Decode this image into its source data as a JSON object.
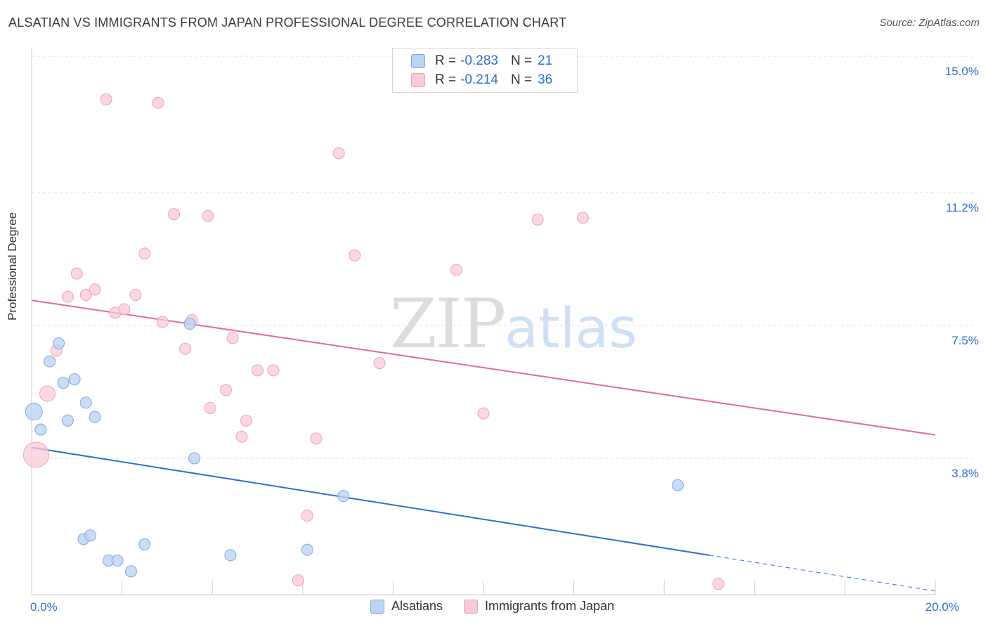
{
  "title": "ALSATIAN VS IMMIGRANTS FROM JAPAN PROFESSIONAL DEGREE CORRELATION CHART",
  "source": "Source: ZipAtlas.com",
  "watermark": {
    "zip": "ZIP",
    "atlas": "atlas"
  },
  "legend_top": [
    {
      "r_label": "R =",
      "r_value": "-0.283",
      "n_label": "N =",
      "n_value": "21"
    },
    {
      "r_label": "R =",
      "r_value": "-0.214",
      "n_label": "N =",
      "n_value": "36"
    }
  ],
  "colors": {
    "alsatian_fill": "#bcd4f3",
    "alsatian_stroke": "#7fa8de",
    "alsatian_line": "#2f6fd0",
    "japan_fill": "#f9cad8",
    "japan_stroke": "#eea1b9",
    "japan_line": "#e06b93",
    "grid": "#e2e2e2",
    "tick_label": "#2f6fd0"
  },
  "chart_data": {
    "type": "scatter",
    "xlabel": "",
    "ylabel": "Professional Degree",
    "xlim": [
      0,
      20
    ],
    "ylim": [
      0,
      15
    ],
    "x_tick_labels": [
      {
        "value": 0,
        "label": "0.0%"
      },
      {
        "value": 20,
        "label": "20.0%"
      }
    ],
    "y_tick_labels": [
      {
        "value": 3.8,
        "label": "3.8%"
      },
      {
        "value": 7.5,
        "label": "7.5%"
      },
      {
        "value": 11.2,
        "label": "11.2%"
      },
      {
        "value": 15.0,
        "label": "15.0%"
      }
    ],
    "grid": true,
    "legend": "bottom",
    "series": [
      {
        "name": "Alsatians",
        "points": [
          {
            "x": 0.05,
            "y": 5.1,
            "size": "large"
          },
          {
            "x": 0.2,
            "y": 4.6
          },
          {
            "x": 0.4,
            "y": 6.5
          },
          {
            "x": 0.6,
            "y": 7.0
          },
          {
            "x": 0.7,
            "y": 5.9
          },
          {
            "x": 0.8,
            "y": 4.85
          },
          {
            "x": 0.95,
            "y": 6.0
          },
          {
            "x": 1.2,
            "y": 5.35
          },
          {
            "x": 1.4,
            "y": 4.95
          },
          {
            "x": 1.15,
            "y": 1.55
          },
          {
            "x": 1.3,
            "y": 1.65
          },
          {
            "x": 1.7,
            "y": 0.95
          },
          {
            "x": 1.9,
            "y": 0.95
          },
          {
            "x": 2.2,
            "y": 0.65
          },
          {
            "x": 2.5,
            "y": 1.4
          },
          {
            "x": 3.5,
            "y": 7.55
          },
          {
            "x": 3.6,
            "y": 3.8
          },
          {
            "x": 4.4,
            "y": 1.1
          },
          {
            "x": 6.1,
            "y": 1.25
          },
          {
            "x": 6.9,
            "y": 2.75
          },
          {
            "x": 14.3,
            "y": 3.05
          }
        ],
        "trend": {
          "x0": 0,
          "y0": 4.1,
          "x1": 15.0,
          "y1": 1.1,
          "dashed_to": {
            "x": 20.0,
            "y": 0.1
          }
        }
      },
      {
        "name": "Immigrants from Japan",
        "points": [
          {
            "x": 0.1,
            "y": 3.9,
            "size": "xlarge"
          },
          {
            "x": 0.35,
            "y": 5.6,
            "size": "medium"
          },
          {
            "x": 0.55,
            "y": 6.8
          },
          {
            "x": 0.8,
            "y": 8.3
          },
          {
            "x": 1.0,
            "y": 8.95
          },
          {
            "x": 1.2,
            "y": 8.35
          },
          {
            "x": 1.4,
            "y": 8.5
          },
          {
            "x": 1.65,
            "y": 13.8
          },
          {
            "x": 1.85,
            "y": 7.85
          },
          {
            "x": 2.05,
            "y": 7.95
          },
          {
            "x": 2.3,
            "y": 8.35
          },
          {
            "x": 2.5,
            "y": 9.5
          },
          {
            "x": 2.8,
            "y": 13.7
          },
          {
            "x": 2.9,
            "y": 7.6
          },
          {
            "x": 3.15,
            "y": 10.6
          },
          {
            "x": 3.4,
            "y": 6.85
          },
          {
            "x": 3.55,
            "y": 7.65
          },
          {
            "x": 3.9,
            "y": 10.55
          },
          {
            "x": 3.95,
            "y": 5.2
          },
          {
            "x": 4.3,
            "y": 5.7
          },
          {
            "x": 4.45,
            "y": 7.15
          },
          {
            "x": 4.65,
            "y": 4.4
          },
          {
            "x": 4.75,
            "y": 4.85
          },
          {
            "x": 5.0,
            "y": 6.25
          },
          {
            "x": 5.35,
            "y": 6.25
          },
          {
            "x": 5.9,
            "y": 0.4
          },
          {
            "x": 6.1,
            "y": 2.2
          },
          {
            "x": 6.3,
            "y": 4.35
          },
          {
            "x": 6.8,
            "y": 12.3
          },
          {
            "x": 7.15,
            "y": 9.45
          },
          {
            "x": 7.7,
            "y": 6.45
          },
          {
            "x": 9.4,
            "y": 9.05
          },
          {
            "x": 10.0,
            "y": 5.05
          },
          {
            "x": 11.2,
            "y": 10.45
          },
          {
            "x": 12.2,
            "y": 10.5
          },
          {
            "x": 15.2,
            "y": 0.3
          }
        ],
        "trend": {
          "x0": 0,
          "y0": 8.2,
          "x1": 20.0,
          "y1": 4.45
        }
      }
    ]
  }
}
